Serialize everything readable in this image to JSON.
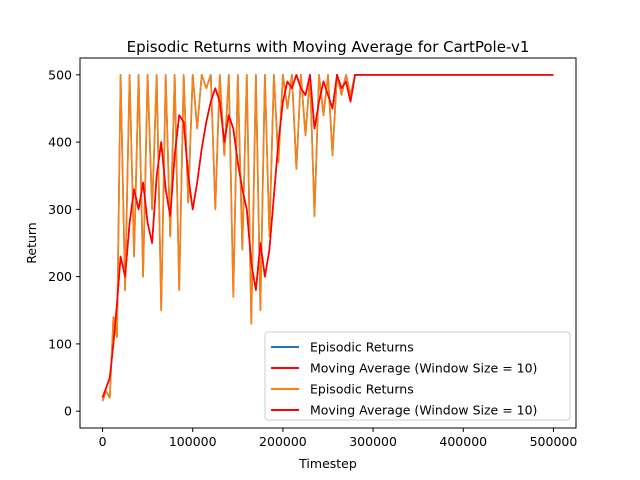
{
  "chart_data": {
    "type": "line",
    "title": "Episodic Returns with Moving Average for CartPole-v1",
    "xlabel": "Timestep",
    "ylabel": "Return",
    "xlim": [
      -25000,
      525000
    ],
    "ylim": [
      -25,
      525
    ],
    "xticks": [
      0,
      100000,
      200000,
      300000,
      400000,
      500000
    ],
    "xtick_labels": [
      "0",
      "100000",
      "200000",
      "300000",
      "400000",
      "500000"
    ],
    "yticks": [
      0,
      100,
      200,
      300,
      400,
      500
    ],
    "ytick_labels": [
      "0",
      "100",
      "200",
      "300",
      "400",
      "500"
    ],
    "grid": false,
    "legend_position": "lower-right",
    "series": [
      {
        "name": "Episodic Returns",
        "color": "#1f77b4",
        "x": [
          0,
          4000,
          8000,
          12000,
          16000,
          20000,
          25000,
          30000,
          35000,
          40000,
          45000,
          50000,
          55000,
          60000,
          65000,
          70000,
          75000,
          80000,
          85000,
          90000,
          95000,
          100000,
          105000,
          110000,
          115000,
          120000,
          125000,
          130000,
          135000,
          140000,
          145000,
          150000,
          155000,
          160000,
          165000,
          170000,
          175000,
          180000,
          185000,
          190000,
          195000,
          200000,
          205000,
          210000,
          215000,
          220000,
          225000,
          230000,
          235000,
          240000,
          245000,
          250000,
          255000,
          260000,
          265000,
          270000,
          275000,
          280000,
          300000,
          400000,
          500000
        ],
        "values": [
          15,
          30,
          20,
          140,
          110,
          500,
          180,
          500,
          230,
          500,
          200,
          500,
          300,
          500,
          150,
          500,
          260,
          500,
          180,
          500,
          310,
          500,
          420,
          500,
          480,
          500,
          300,
          500,
          380,
          500,
          170,
          500,
          240,
          500,
          130,
          500,
          150,
          500,
          260,
          500,
          370,
          500,
          450,
          500,
          360,
          500,
          410,
          500,
          290,
          500,
          440,
          500,
          380,
          500,
          470,
          500,
          470,
          500,
          500,
          500,
          500
        ]
      },
      {
        "name": "Moving Average (Window Size = 10)",
        "color": "#ff0000",
        "x": [
          0,
          4000,
          8000,
          12000,
          16000,
          20000,
          25000,
          30000,
          35000,
          40000,
          45000,
          50000,
          55000,
          60000,
          65000,
          70000,
          75000,
          80000,
          85000,
          90000,
          95000,
          100000,
          105000,
          110000,
          115000,
          120000,
          125000,
          130000,
          135000,
          140000,
          145000,
          150000,
          155000,
          160000,
          165000,
          170000,
          175000,
          180000,
          185000,
          190000,
          195000,
          200000,
          205000,
          210000,
          215000,
          220000,
          225000,
          230000,
          235000,
          240000,
          245000,
          250000,
          255000,
          260000,
          265000,
          270000,
          275000,
          280000,
          300000,
          400000,
          500000
        ],
        "values": [
          20,
          35,
          50,
          100,
          160,
          230,
          200,
          280,
          330,
          300,
          340,
          280,
          250,
          350,
          400,
          330,
          290,
          380,
          440,
          430,
          350,
          300,
          340,
          390,
          430,
          460,
          480,
          460,
          400,
          440,
          420,
          370,
          330,
          300,
          220,
          180,
          250,
          200,
          240,
          320,
          400,
          460,
          490,
          480,
          500,
          480,
          470,
          500,
          420,
          460,
          490,
          470,
          450,
          500,
          480,
          490,
          460,
          500,
          500,
          500,
          500
        ]
      },
      {
        "name": "Episodic Returns",
        "color": "#ff7f0e",
        "x": [
          0,
          4000,
          8000,
          12000,
          16000,
          20000,
          25000,
          30000,
          35000,
          40000,
          45000,
          50000,
          55000,
          60000,
          65000,
          70000,
          75000,
          80000,
          85000,
          90000,
          95000,
          100000,
          105000,
          110000,
          115000,
          120000,
          125000,
          130000,
          135000,
          140000,
          145000,
          150000,
          155000,
          160000,
          165000,
          170000,
          175000,
          180000,
          185000,
          190000,
          195000,
          200000,
          205000,
          210000,
          215000,
          220000,
          225000,
          230000,
          235000,
          240000,
          245000,
          250000,
          255000,
          260000,
          265000,
          270000,
          275000,
          280000,
          300000,
          400000,
          500000
        ],
        "values": [
          15,
          30,
          20,
          140,
          110,
          500,
          180,
          500,
          230,
          500,
          200,
          500,
          300,
          500,
          150,
          500,
          260,
          500,
          180,
          500,
          310,
          500,
          420,
          500,
          480,
          500,
          300,
          500,
          380,
          500,
          170,
          500,
          240,
          500,
          130,
          500,
          150,
          500,
          260,
          500,
          370,
          500,
          450,
          500,
          360,
          500,
          410,
          500,
          290,
          500,
          440,
          500,
          380,
          500,
          470,
          500,
          470,
          500,
          500,
          500,
          500
        ]
      },
      {
        "name": "Moving Average (Window Size = 10)",
        "color": "#ff0000",
        "x": [
          0,
          4000,
          8000,
          12000,
          16000,
          20000,
          25000,
          30000,
          35000,
          40000,
          45000,
          50000,
          55000,
          60000,
          65000,
          70000,
          75000,
          80000,
          85000,
          90000,
          95000,
          100000,
          105000,
          110000,
          115000,
          120000,
          125000,
          130000,
          135000,
          140000,
          145000,
          150000,
          155000,
          160000,
          165000,
          170000,
          175000,
          180000,
          185000,
          190000,
          195000,
          200000,
          205000,
          210000,
          215000,
          220000,
          225000,
          230000,
          235000,
          240000,
          245000,
          250000,
          255000,
          260000,
          265000,
          270000,
          275000,
          280000,
          300000,
          400000,
          500000
        ],
        "values": [
          20,
          35,
          50,
          100,
          160,
          230,
          200,
          280,
          330,
          300,
          340,
          280,
          250,
          350,
          400,
          330,
          290,
          380,
          440,
          430,
          350,
          300,
          340,
          390,
          430,
          460,
          480,
          460,
          400,
          440,
          420,
          370,
          330,
          300,
          220,
          180,
          250,
          200,
          240,
          320,
          400,
          460,
          490,
          480,
          500,
          480,
          470,
          500,
          420,
          460,
          490,
          470,
          450,
          500,
          480,
          490,
          460,
          500,
          500,
          500,
          500
        ]
      }
    ]
  }
}
